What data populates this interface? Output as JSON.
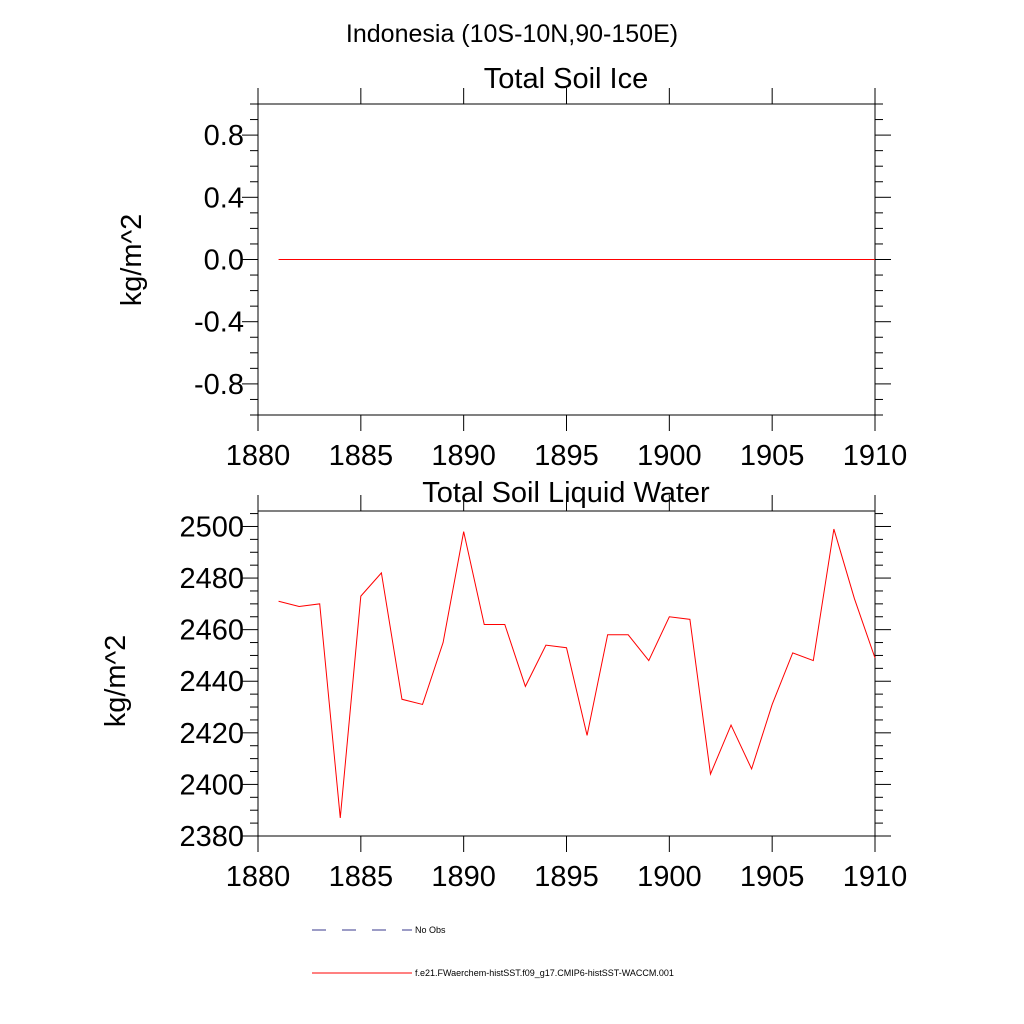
{
  "figure_title": "Indonesia (10S-10N,90-150E)",
  "colors": {
    "series": "#ff0000",
    "no_obs": "#3a3a8c",
    "axes": "#000000"
  },
  "legend": {
    "items": [
      {
        "label": "No Obs",
        "style": "dashed",
        "color": "#3a3a8c"
      },
      {
        "label": "f.e21.FWaerchem-histSST.f09_g17.CMIP6-histSST-WACCM.001",
        "style": "solid",
        "color": "#ff0000"
      }
    ]
  },
  "chart_data": [
    {
      "type": "line",
      "title": "Total Soil Ice",
      "xlabel": "",
      "ylabel": "kg/m^2",
      "xlim": [
        1880,
        1910
      ],
      "ylim": [
        -1.0,
        1.0
      ],
      "xticks": [
        "1880",
        "1885",
        "1890",
        "1895",
        "1900",
        "1905",
        "1910"
      ],
      "yticks": [
        "-0.8",
        "-0.4",
        "0.0",
        "0.4",
        "0.8"
      ],
      "grid": false,
      "series": [
        {
          "x": [
            1881,
            1882,
            1883,
            1884,
            1885,
            1886,
            1887,
            1888,
            1889,
            1890,
            1891,
            1892,
            1893,
            1894,
            1895,
            1896,
            1897,
            1898,
            1899,
            1900,
            1901,
            1902,
            1903,
            1904,
            1905,
            1906,
            1907,
            1908,
            1909,
            1910
          ],
          "values": [
            0,
            0,
            0,
            0,
            0,
            0,
            0,
            0,
            0,
            0,
            0,
            0,
            0,
            0,
            0,
            0,
            0,
            0,
            0,
            0,
            0,
            0,
            0,
            0,
            0,
            0,
            0,
            0,
            0,
            0
          ]
        }
      ]
    },
    {
      "type": "line",
      "title": "Total Soil Liquid Water",
      "xlabel": "",
      "ylabel": "kg/m^2",
      "xlim": [
        1880,
        1910
      ],
      "ylim": [
        2380,
        2506
      ],
      "xticks": [
        "1880",
        "1885",
        "1890",
        "1895",
        "1900",
        "1905",
        "1910"
      ],
      "yticks": [
        "2380",
        "2400",
        "2420",
        "2440",
        "2460",
        "2480",
        "2500"
      ],
      "grid": false,
      "series": [
        {
          "x": [
            1881,
            1882,
            1883,
            1884,
            1885,
            1886,
            1887,
            1888,
            1889,
            1890,
            1891,
            1892,
            1893,
            1894,
            1895,
            1896,
            1897,
            1898,
            1899,
            1900,
            1901,
            1902,
            1903,
            1904,
            1905,
            1906,
            1907,
            1908,
            1909,
            1910
          ],
          "values": [
            2471,
            2469,
            2470,
            2387,
            2473,
            2482,
            2433,
            2431,
            2455,
            2498,
            2462,
            2462,
            2438,
            2454,
            2453,
            2419,
            2458,
            2458,
            2448,
            2465,
            2464,
            2404,
            2423,
            2406,
            2431,
            2451,
            2448,
            2499,
            2472,
            2449
          ]
        }
      ]
    }
  ]
}
